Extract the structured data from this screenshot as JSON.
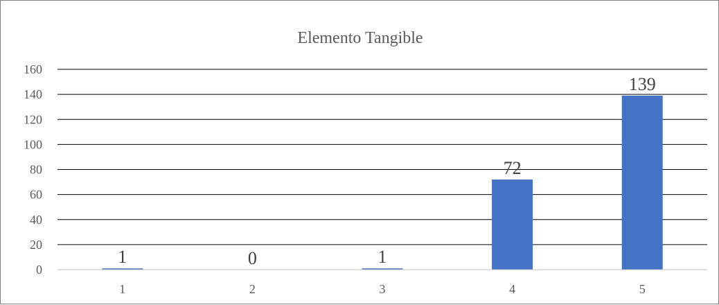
{
  "chart_data": {
    "type": "bar",
    "title": "Elemento Tangible",
    "xlabel": "",
    "ylabel": "",
    "categories": [
      "1",
      "2",
      "3",
      "4",
      "5"
    ],
    "values": [
      1,
      0,
      1,
      72,
      139
    ],
    "ylim": [
      0,
      160
    ],
    "yticks": [
      "0",
      "20",
      "40",
      "60",
      "80",
      "100",
      "120",
      "140",
      "160"
    ],
    "grid": true,
    "legend": "none",
    "bar_color": "#4472c4"
  }
}
